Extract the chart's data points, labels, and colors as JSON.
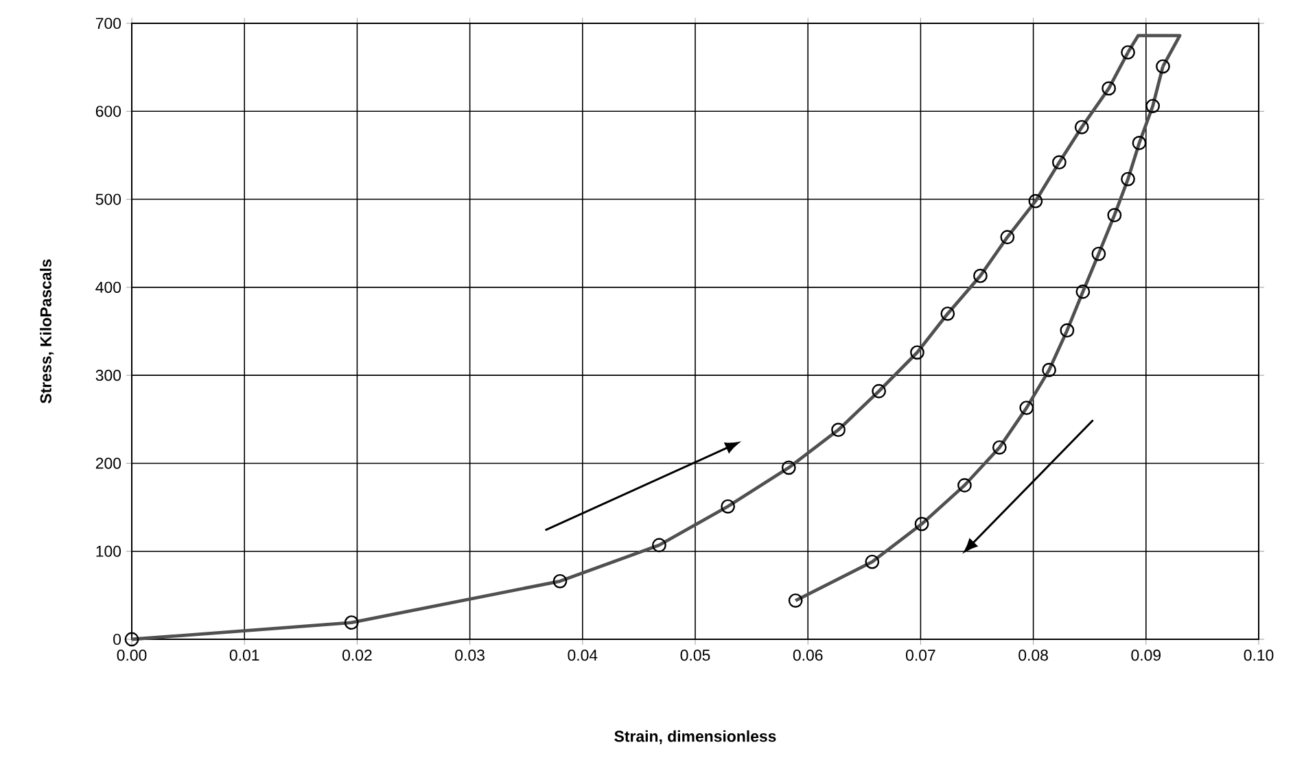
{
  "chart_data": {
    "type": "line",
    "xlabel": "Strain, dimensionless",
    "ylabel": "Stress, KiloPascals",
    "xlim": [
      0,
      0.1
    ],
    "ylim": [
      0,
      700
    ],
    "xticks": [
      {
        "value": 0,
        "label": "0.00"
      },
      {
        "value": 0.01,
        "label": "0.01"
      },
      {
        "value": 0.02,
        "label": "0.02"
      },
      {
        "value": 0.03,
        "label": "0.03"
      },
      {
        "value": 0.04,
        "label": "0.04"
      },
      {
        "value": 0.05,
        "label": "0.05"
      },
      {
        "value": 0.06,
        "label": "0.06"
      },
      {
        "value": 0.07,
        "label": "0.07"
      },
      {
        "value": 0.08,
        "label": "0.08"
      },
      {
        "value": 0.09,
        "label": "0.09"
      },
      {
        "value": 0.1,
        "label": "0.10"
      }
    ],
    "yticks": [
      0,
      100,
      200,
      300,
      400,
      500,
      600,
      700
    ],
    "grid": true,
    "line_style": "solid",
    "series": [
      {
        "color": "#505050",
        "marker": "circle",
        "x": [
          0,
          0.0195,
          0.038,
          0.0468,
          0.0529,
          0.0583,
          0.0627,
          0.0663,
          0.0697,
          0.0724,
          0.0753,
          0.0777,
          0.0802,
          0.0823,
          0.0843,
          0.0867,
          0.0884
        ],
        "values": [
          0,
          19,
          66,
          107,
          151,
          195,
          238,
          282,
          326,
          370,
          413,
          457,
          498,
          542,
          582,
          626,
          667
        ]
      },
      {
        "color": "#505050",
        "marker": "none",
        "x": [
          0.0884,
          0.0893,
          0.093,
          0.0915
        ],
        "values": [
          667,
          686,
          686,
          651
        ]
      },
      {
        "color": "#505050",
        "marker": "circle",
        "x": [
          0.0915,
          0.0906,
          0.0894,
          0.0884,
          0.0872,
          0.0858,
          0.0844,
          0.083,
          0.0814,
          0.0794,
          0.077,
          0.0739,
          0.0701,
          0.0657,
          0.0589
        ],
        "values": [
          651,
          606,
          564,
          523,
          482,
          438,
          395,
          351,
          306,
          263,
          218,
          175,
          131,
          88,
          44
        ]
      }
    ]
  }
}
